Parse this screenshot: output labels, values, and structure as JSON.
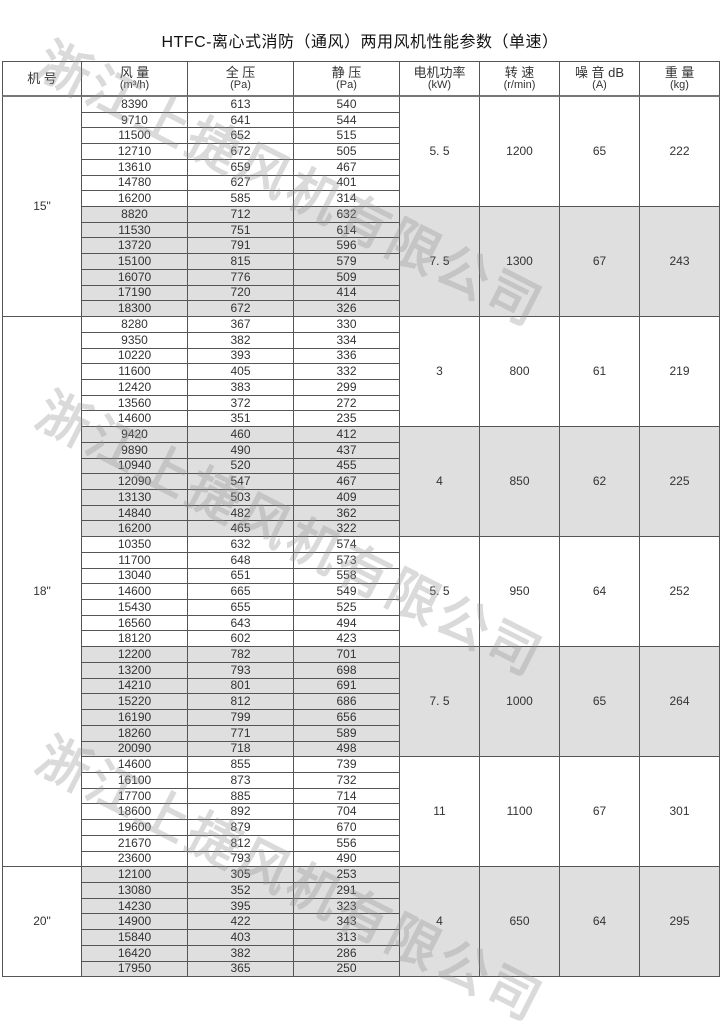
{
  "title": "HTFC-离心式消防（通风）两用风机性能参数（单速）",
  "watermark": "浙江上捷风机有限公司",
  "colors": {
    "shade": "#dfdfdf",
    "border": "#555555"
  },
  "headers": [
    {
      "label": "机 号",
      "unit": ""
    },
    {
      "label": "风 量",
      "unit": "(m³/h)"
    },
    {
      "label": "全 压",
      "unit": "(Pa)"
    },
    {
      "label": "静 压",
      "unit": "(Pa)"
    },
    {
      "label": "电机功率",
      "unit": "(kW)"
    },
    {
      "label": "转 速",
      "unit": "(r/min)"
    },
    {
      "label": "噪 音 dB",
      "unit": "(A)"
    },
    {
      "label": "重 量",
      "unit": "(kg)"
    }
  ],
  "groups": [
    {
      "model": "15\"",
      "blocks": [
        {
          "power": "5. 5",
          "speed": "1200",
          "noise": "65",
          "weight": "222",
          "shaded": false,
          "rows": [
            [
              "8390",
              "613",
              "540"
            ],
            [
              "9710",
              "641",
              "544"
            ],
            [
              "11500",
              "652",
              "515"
            ],
            [
              "12710",
              "672",
              "505"
            ],
            [
              "13610",
              "659",
              "467"
            ],
            [
              "14780",
              "627",
              "401"
            ],
            [
              "16200",
              "585",
              "314"
            ]
          ]
        },
        {
          "power": "7. 5",
          "speed": "1300",
          "noise": "67",
          "weight": "243",
          "shaded": true,
          "rows": [
            [
              "8820",
              "712",
              "632"
            ],
            [
              "11530",
              "751",
              "614"
            ],
            [
              "13720",
              "791",
              "596"
            ],
            [
              "15100",
              "815",
              "579"
            ],
            [
              "16070",
              "776",
              "509"
            ],
            [
              "17190",
              "720",
              "414"
            ],
            [
              "18300",
              "672",
              "326"
            ]
          ]
        }
      ]
    },
    {
      "model": "18\"",
      "blocks": [
        {
          "power": "3",
          "speed": "800",
          "noise": "61",
          "weight": "219",
          "shaded": false,
          "rows": [
            [
              "8280",
              "367",
              "330"
            ],
            [
              "9350",
              "382",
              "334"
            ],
            [
              "10220",
              "393",
              "336"
            ],
            [
              "11600",
              "405",
              "332"
            ],
            [
              "12420",
              "383",
              "299"
            ],
            [
              "13560",
              "372",
              "272"
            ],
            [
              "14600",
              "351",
              "235"
            ]
          ]
        },
        {
          "power": "4",
          "speed": "850",
          "noise": "62",
          "weight": "225",
          "shaded": true,
          "rows": [
            [
              "9420",
              "460",
              "412"
            ],
            [
              "9890",
              "490",
              "437"
            ],
            [
              "10940",
              "520",
              "455"
            ],
            [
              "12090",
              "547",
              "467"
            ],
            [
              "13130",
              "503",
              "409"
            ],
            [
              "14840",
              "482",
              "362"
            ],
            [
              "16200",
              "465",
              "322"
            ]
          ]
        },
        {
          "power": "5. 5",
          "speed": "950",
          "noise": "64",
          "weight": "252",
          "shaded": false,
          "rows": [
            [
              "10350",
              "632",
              "574"
            ],
            [
              "11700",
              "648",
              "573"
            ],
            [
              "13040",
              "651",
              "558"
            ],
            [
              "14600",
              "665",
              "549"
            ],
            [
              "15430",
              "655",
              "525"
            ],
            [
              "16560",
              "643",
              "494"
            ],
            [
              "18120",
              "602",
              "423"
            ]
          ]
        },
        {
          "power": "7. 5",
          "speed": "1000",
          "noise": "65",
          "weight": "264",
          "shaded": true,
          "rows": [
            [
              "12200",
              "782",
              "701"
            ],
            [
              "13200",
              "793",
              "698"
            ],
            [
              "14210",
              "801",
              "691"
            ],
            [
              "15220",
              "812",
              "686"
            ],
            [
              "16190",
              "799",
              "656"
            ],
            [
              "18260",
              "771",
              "589"
            ],
            [
              "20090",
              "718",
              "498"
            ]
          ]
        },
        {
          "power": "11",
          "speed": "1100",
          "noise": "67",
          "weight": "301",
          "shaded": false,
          "rows": [
            [
              "14600",
              "855",
              "739"
            ],
            [
              "16100",
              "873",
              "732"
            ],
            [
              "17700",
              "885",
              "714"
            ],
            [
              "18600",
              "892",
              "704"
            ],
            [
              "19600",
              "879",
              "670"
            ],
            [
              "21670",
              "812",
              "556"
            ],
            [
              "23600",
              "793",
              "490"
            ]
          ]
        }
      ]
    },
    {
      "model": "20\"",
      "blocks": [
        {
          "power": "4",
          "speed": "650",
          "noise": "64",
          "weight": "295",
          "shaded": true,
          "rows": [
            [
              "12100",
              "305",
              "253"
            ],
            [
              "13080",
              "352",
              "291"
            ],
            [
              "14230",
              "395",
              "323"
            ],
            [
              "14900",
              "422",
              "343"
            ],
            [
              "15840",
              "403",
              "313"
            ],
            [
              "16420",
              "382",
              "286"
            ],
            [
              "17950",
              "365",
              "250"
            ]
          ]
        }
      ]
    }
  ]
}
